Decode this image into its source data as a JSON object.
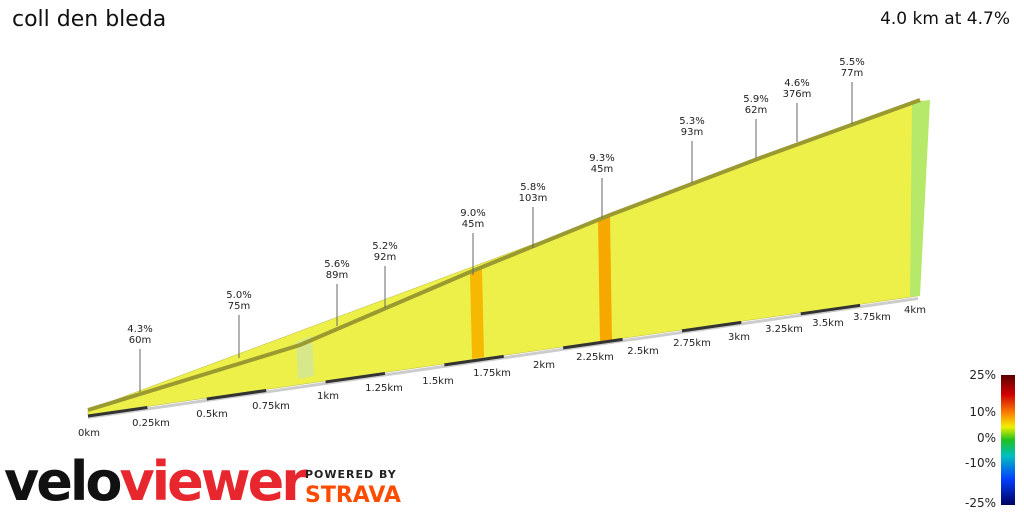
{
  "header": {
    "title": "coll den bleda",
    "summary": "4.0 km at 4.7%"
  },
  "annotations": [
    {
      "grade": "4.3%",
      "length": "60m"
    },
    {
      "grade": "5.0%",
      "length": "75m"
    },
    {
      "grade": "5.6%",
      "length": "89m"
    },
    {
      "grade": "5.2%",
      "length": "92m"
    },
    {
      "grade": "9.0%",
      "length": "45m"
    },
    {
      "grade": "5.8%",
      "length": "103m"
    },
    {
      "grade": "9.3%",
      "length": "45m"
    },
    {
      "grade": "5.3%",
      "length": "93m"
    },
    {
      "grade": "5.9%",
      "length": "62m"
    },
    {
      "grade": "4.6%",
      "length": "376m"
    },
    {
      "grade": "5.5%",
      "length": "77m"
    }
  ],
  "distance_labels": [
    "0km",
    "0.25km",
    "0.5km",
    "0.75km",
    "1km",
    "1.25km",
    "1.5km",
    "1.75km",
    "2km",
    "2.25km",
    "2.5km",
    "2.75km",
    "3km",
    "3.25km",
    "3.5km",
    "3.75km",
    "4km"
  ],
  "legend": {
    "labels": [
      "25%",
      "10%",
      "0%",
      "-10%",
      "-25%"
    ]
  },
  "logo": {
    "velo": "velo",
    "viewer": "viewer",
    "powered_by": "POWERED BY",
    "strava": "STRAVA"
  }
}
